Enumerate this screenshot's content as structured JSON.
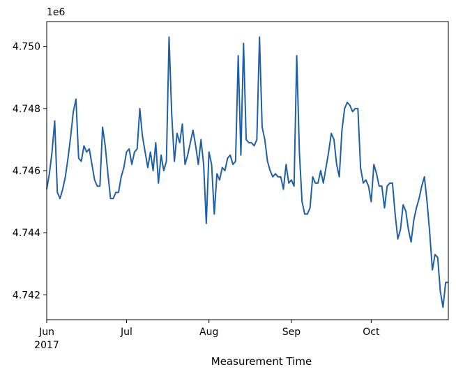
{
  "chart_data": {
    "type": "line",
    "title": "",
    "xlabel": "Measurement Time",
    "ylabel": "",
    "y_offset_label": "1e6",
    "y_scale_factor": 1000000,
    "x_start_year_label": "2017",
    "grid": false,
    "legend": "none",
    "line_color": "#1f5fa8",
    "xlim": [
      "2017-06-01",
      "2017-10-30"
    ],
    "ylim": [
      4.7412,
      4.7508
    ],
    "x_ticks": [
      {
        "date": "2017-06-01",
        "label": "Jun"
      },
      {
        "date": "2017-07-01",
        "label": "Jul"
      },
      {
        "date": "2017-08-01",
        "label": "Aug"
      },
      {
        "date": "2017-09-01",
        "label": "Sep"
      },
      {
        "date": "2017-10-01",
        "label": "Oct"
      }
    ],
    "y_ticks": [
      {
        "value": 4.742,
        "label": "4.742"
      },
      {
        "value": 4.744,
        "label": "4.744"
      },
      {
        "value": 4.746,
        "label": "4.746"
      },
      {
        "value": 4.748,
        "label": "4.748"
      },
      {
        "value": 4.75,
        "label": "4.750"
      }
    ],
    "series": [
      {
        "x": [
          "2017-06-01",
          "2017-06-02",
          "2017-06-03",
          "2017-06-04",
          "2017-06-05",
          "2017-06-06",
          "2017-06-07",
          "2017-06-08",
          "2017-06-09",
          "2017-06-10",
          "2017-06-11",
          "2017-06-12",
          "2017-06-13",
          "2017-06-14",
          "2017-06-15",
          "2017-06-16",
          "2017-06-17",
          "2017-06-18",
          "2017-06-19",
          "2017-06-20",
          "2017-06-21",
          "2017-06-22",
          "2017-06-23",
          "2017-06-24",
          "2017-06-25",
          "2017-06-26",
          "2017-06-27",
          "2017-06-28",
          "2017-06-29",
          "2017-06-30",
          "2017-07-01",
          "2017-07-02",
          "2017-07-03",
          "2017-07-04",
          "2017-07-05",
          "2017-07-06",
          "2017-07-07",
          "2017-07-08",
          "2017-07-09",
          "2017-07-10",
          "2017-07-11",
          "2017-07-12",
          "2017-07-13",
          "2017-07-14",
          "2017-07-15",
          "2017-07-16",
          "2017-07-17",
          "2017-07-18",
          "2017-07-19",
          "2017-07-20",
          "2017-07-21",
          "2017-07-22",
          "2017-07-23",
          "2017-07-24",
          "2017-07-25",
          "2017-07-26",
          "2017-07-27",
          "2017-07-28",
          "2017-07-29",
          "2017-07-30",
          "2017-07-31",
          "2017-08-01",
          "2017-08-02",
          "2017-08-03",
          "2017-08-04",
          "2017-08-05",
          "2017-08-06",
          "2017-08-07",
          "2017-08-08",
          "2017-08-09",
          "2017-08-10",
          "2017-08-11",
          "2017-08-12",
          "2017-08-13",
          "2017-08-14",
          "2017-08-15",
          "2017-08-16",
          "2017-08-17",
          "2017-08-18",
          "2017-08-19",
          "2017-08-20",
          "2017-08-21",
          "2017-08-22",
          "2017-08-23",
          "2017-08-24",
          "2017-08-25",
          "2017-08-26",
          "2017-08-27",
          "2017-08-28",
          "2017-08-29",
          "2017-08-30",
          "2017-08-31",
          "2017-09-01",
          "2017-09-02",
          "2017-09-03",
          "2017-09-04",
          "2017-09-05",
          "2017-09-06",
          "2017-09-07",
          "2017-09-08",
          "2017-09-09",
          "2017-09-10",
          "2017-09-11",
          "2017-09-12",
          "2017-09-13",
          "2017-09-14",
          "2017-09-15",
          "2017-09-16",
          "2017-09-17",
          "2017-09-18",
          "2017-09-19",
          "2017-09-20",
          "2017-09-21",
          "2017-09-22",
          "2017-09-23",
          "2017-09-24",
          "2017-09-25",
          "2017-09-26",
          "2017-09-27",
          "2017-09-28",
          "2017-09-29",
          "2017-09-30",
          "2017-10-01",
          "2017-10-02",
          "2017-10-03",
          "2017-10-04",
          "2017-10-05",
          "2017-10-06",
          "2017-10-07",
          "2017-10-08",
          "2017-10-09",
          "2017-10-10",
          "2017-10-11",
          "2017-10-12",
          "2017-10-13",
          "2017-10-14",
          "2017-10-15",
          "2017-10-16",
          "2017-10-17",
          "2017-10-18",
          "2017-10-19",
          "2017-10-20",
          "2017-10-21",
          "2017-10-22",
          "2017-10-23",
          "2017-10-24",
          "2017-10-25",
          "2017-10-26",
          "2017-10-27",
          "2017-10-28",
          "2017-10-29",
          "2017-10-30"
        ],
        "y": [
          4.7454,
          4.7459,
          4.7466,
          4.7476,
          4.7453,
          4.7451,
          4.7454,
          4.7458,
          4.7464,
          4.7471,
          4.7479,
          4.7483,
          4.7464,
          4.7463,
          4.7468,
          4.7466,
          4.7467,
          4.7462,
          4.7457,
          4.7455,
          4.7455,
          4.7474,
          4.7468,
          4.7459,
          4.7451,
          4.7451,
          4.7453,
          4.7453,
          4.7458,
          4.7461,
          4.7466,
          4.7467,
          4.7462,
          4.7466,
          4.7467,
          4.748,
          4.7471,
          4.7466,
          4.7461,
          4.7466,
          4.746,
          4.7469,
          4.7456,
          4.7465,
          4.746,
          4.7463,
          4.7503,
          4.7478,
          4.7463,
          4.7472,
          4.7469,
          4.7475,
          4.7462,
          4.7465,
          4.7469,
          4.7473,
          4.7468,
          4.7462,
          4.747,
          4.7462,
          4.7443,
          4.7466,
          4.7462,
          4.7446,
          4.7459,
          4.7457,
          4.7461,
          4.746,
          4.7464,
          4.7465,
          4.7462,
          4.7463,
          4.7497,
          4.7465,
          4.7501,
          4.747,
          4.7469,
          4.7469,
          4.7468,
          4.747,
          4.7503,
          4.7474,
          4.747,
          4.7463,
          4.746,
          4.7458,
          4.7459,
          4.7458,
          4.7458,
          4.7454,
          4.7462,
          4.7456,
          4.7457,
          4.7455,
          4.7497,
          4.7466,
          4.745,
          4.7446,
          4.7446,
          4.7448,
          4.7458,
          4.7456,
          4.7456,
          4.746,
          4.7456,
          4.7461,
          4.7466,
          4.7472,
          4.747,
          4.7462,
          4.7458,
          4.7473,
          4.748,
          4.7482,
          4.7481,
          4.7479,
          4.748,
          4.748,
          4.7461,
          4.7456,
          4.7457,
          4.7455,
          4.745,
          4.7462,
          4.7459,
          4.7455,
          4.7455,
          4.7448,
          4.7455,
          4.7456,
          4.7456,
          4.7446,
          4.7438,
          4.7441,
          4.7449,
          4.7447,
          4.7441,
          4.7437,
          4.7444,
          4.7448,
          4.7451,
          4.7455,
          4.7458,
          4.745,
          4.744,
          4.7428,
          4.7433,
          4.7432,
          4.7421,
          4.7416,
          4.7424,
          4.7424
        ]
      }
    ]
  }
}
